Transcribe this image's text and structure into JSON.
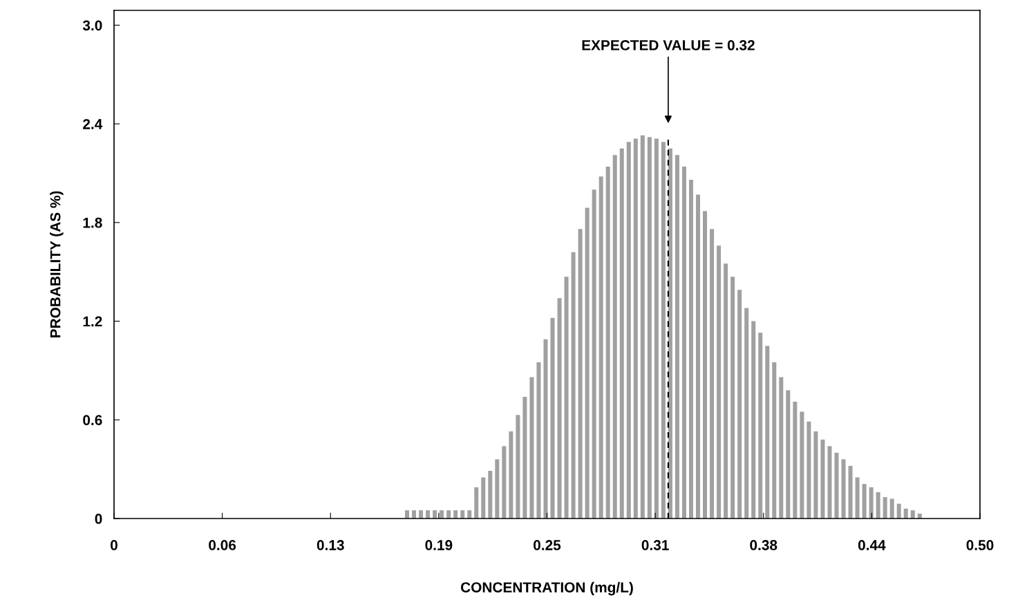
{
  "chart_data": {
    "type": "histogram",
    "xlabel": "CONCENTRATION (mg/L)",
    "ylabel": "PROBABILITY (AS %)",
    "bins": [
      0.168,
      0.172,
      0.176,
      0.18,
      0.184,
      0.188,
      0.192,
      0.196,
      0.2,
      0.204,
      0.208,
      0.212,
      0.216,
      0.22,
      0.224,
      0.228,
      0.232,
      0.236,
      0.24,
      0.244,
      0.248,
      0.252,
      0.256,
      0.26,
      0.264,
      0.268,
      0.272,
      0.276,
      0.28,
      0.284,
      0.288,
      0.292,
      0.296,
      0.3,
      0.304,
      0.308,
      0.312,
      0.316,
      0.32,
      0.324,
      0.328,
      0.332,
      0.336,
      0.34,
      0.344,
      0.348,
      0.352,
      0.356,
      0.36,
      0.364,
      0.368,
      0.372,
      0.376,
      0.38,
      0.384,
      0.388,
      0.392,
      0.396,
      0.4,
      0.404,
      0.408,
      0.412,
      0.416,
      0.42,
      0.424,
      0.428,
      0.432,
      0.436,
      0.44,
      0.444,
      0.448,
      0.452,
      0.456,
      0.46,
      0.464,
      0.468
    ],
    "values": [
      0.05,
      0.05,
      0.05,
      0.05,
      0.05,
      0.05,
      0.05,
      0.05,
      0.05,
      0.05,
      0.19,
      0.25,
      0.29,
      0.36,
      0.44,
      0.53,
      0.63,
      0.74,
      0.86,
      0.95,
      1.09,
      1.22,
      1.34,
      1.47,
      1.62,
      1.76,
      1.89,
      2.0,
      2.08,
      2.14,
      2.21,
      2.25,
      2.29,
      2.31,
      2.33,
      2.32,
      2.31,
      2.29,
      2.25,
      2.21,
      2.14,
      2.06,
      1.97,
      1.87,
      1.76,
      1.66,
      1.55,
      1.47,
      1.39,
      1.28,
      1.2,
      1.13,
      1.05,
      0.95,
      0.86,
      0.78,
      0.71,
      0.65,
      0.59,
      0.53,
      0.48,
      0.44,
      0.4,
      0.36,
      0.32,
      0.25,
      0.21,
      0.19,
      0.16,
      0.13,
      0.12,
      0.09,
      0.06,
      0.05,
      0.03
    ],
    "color": "#a0a0a0",
    "xlim": [
      0,
      0.5
    ],
    "xticks": [
      0,
      {
        "value": 0.0625,
        "label": "0.06"
      },
      {
        "value": 0.125,
        "label": "0.13"
      },
      {
        "value": 0.1875,
        "label": "0.19"
      },
      0.25,
      {
        "value": 0.3125,
        "label": "0.31"
      },
      {
        "value": 0.375,
        "label": "0.38"
      },
      {
        "value": 0.4375,
        "label": "0.44"
      },
      {
        "value": 0.5,
        "label": "0.50"
      }
    ],
    "ylim": [
      0,
      3.09
    ],
    "yticks": [
      0,
      0.6,
      1.2,
      1.8,
      2.4,
      {
        "value": 3.0,
        "label": "3.0"
      }
    ],
    "ref_lines": [
      {
        "axis": "x",
        "value": 0.32,
        "label": "EXPECTED VALUE = 0.32",
        "line_style": "dashed",
        "color": "#000000"
      }
    ],
    "grid": false
  }
}
